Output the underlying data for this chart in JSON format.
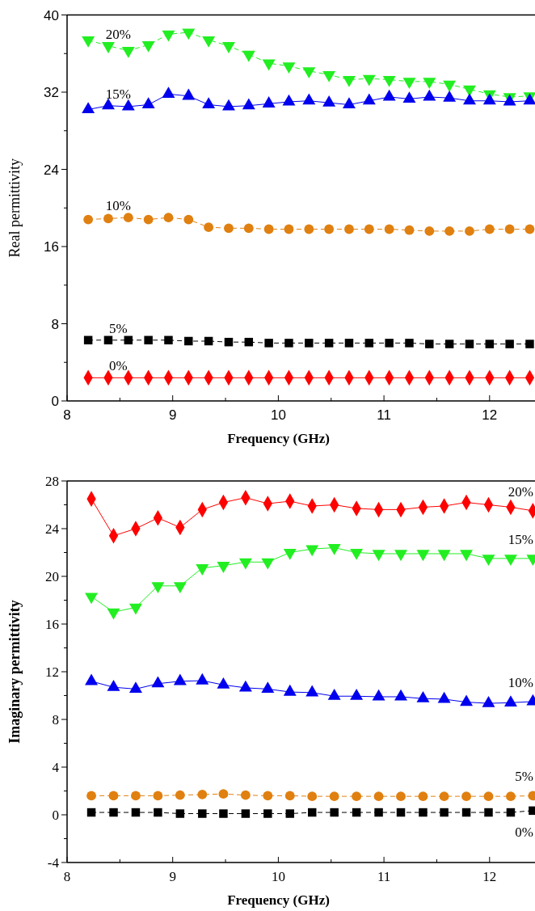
{
  "chart_data": [
    {
      "type": "line",
      "xlabel": "Frequency (GHz)",
      "ylabel": "Real permittivity",
      "x": [
        8.2,
        8.39,
        8.58,
        8.77,
        8.96,
        9.15,
        9.34,
        9.53,
        9.72,
        9.91,
        10.1,
        10.29,
        10.48,
        10.67,
        10.86,
        11.05,
        11.24,
        11.43,
        11.62,
        11.81,
        12.0,
        12.19,
        12.38
      ],
      "xlim": [
        8,
        12.43
      ],
      "xticks": [
        8,
        {
          "value": 8.5,
          "label": null
        },
        9,
        {
          "value": 9.5,
          "label": null
        },
        10,
        {
          "value": 10.5,
          "label": null
        },
        11,
        {
          "value": 11.5,
          "label": null
        },
        12
      ],
      "ylim": [
        0,
        40
      ],
      "yticks": [
        0,
        {
          "value": 4,
          "label": null
        },
        8,
        {
          "value": 12,
          "label": null
        },
        16,
        {
          "value": 20,
          "label": null
        },
        24,
        {
          "value": 28,
          "label": null
        },
        32,
        {
          "value": 36,
          "label": null
        },
        40
      ],
      "grid": false,
      "series": [
        {
          "name": "20%",
          "color": "#22ee22",
          "marker": "triangle-down",
          "line_style": "dashed",
          "values": [
            37.4,
            36.8,
            36.3,
            36.9,
            38.0,
            38.2,
            37.4,
            36.8,
            35.9,
            35.0,
            34.7,
            34.2,
            33.8,
            33.3,
            33.4,
            33.3,
            33.1,
            33.1,
            32.8,
            32.3,
            31.8,
            31.5,
            31.6
          ]
        },
        {
          "name": "15%",
          "color": "#0000ee",
          "marker": "triangle",
          "line_style": "solid",
          "values": [
            30.2,
            30.6,
            30.5,
            30.7,
            31.8,
            31.6,
            30.7,
            30.5,
            30.6,
            30.8,
            31.0,
            31.1,
            30.9,
            30.7,
            31.1,
            31.5,
            31.3,
            31.5,
            31.4,
            31.1,
            31.1,
            31.0,
            31.1
          ]
        },
        {
          "name": "10%",
          "color": "#e08010",
          "marker": "circle",
          "line_style": "dashed",
          "values": [
            18.8,
            18.9,
            19.0,
            18.8,
            19.0,
            18.8,
            18.0,
            17.9,
            17.9,
            17.8,
            17.8,
            17.8,
            17.8,
            17.8,
            17.8,
            17.8,
            17.7,
            17.6,
            17.6,
            17.6,
            17.8,
            17.8,
            17.8
          ]
        },
        {
          "name": "5%",
          "color": "#000000",
          "marker": "square",
          "line_style": "dashed",
          "values": [
            6.3,
            6.3,
            6.3,
            6.3,
            6.3,
            6.2,
            6.2,
            6.1,
            6.1,
            6.0,
            6.0,
            6.0,
            6.0,
            6.0,
            6.0,
            6.0,
            6.0,
            5.9,
            5.9,
            5.9,
            5.9,
            5.9,
            5.9
          ]
        },
        {
          "name": "0%",
          "color": "#ff0000",
          "marker": "diamond",
          "line_style": "solid",
          "values": [
            2.4,
            2.4,
            2.4,
            2.4,
            2.4,
            2.4,
            2.4,
            2.4,
            2.4,
            2.4,
            2.4,
            2.4,
            2.4,
            2.4,
            2.4,
            2.4,
            2.4,
            2.4,
            2.4,
            2.4,
            2.4,
            2.4,
            2.4
          ]
        }
      ]
    },
    {
      "type": "line",
      "xlabel": "Frequency (GHz)",
      "ylabel": "Imaginary permittivity",
      "x": [
        8.23,
        8.44,
        8.65,
        8.86,
        9.07,
        9.28,
        9.48,
        9.69,
        9.9,
        10.11,
        10.32,
        10.53,
        10.74,
        10.95,
        11.16,
        11.37,
        11.57,
        11.78,
        11.99,
        12.2,
        12.41
      ],
      "xlim": [
        8,
        12.43
      ],
      "xticks": [
        8,
        {
          "value": 8.5,
          "label": null
        },
        9,
        {
          "value": 9.5,
          "label": null
        },
        10,
        {
          "value": 10.5,
          "label": null
        },
        11,
        {
          "value": 11.5,
          "label": null
        },
        12
      ],
      "ylim": [
        -4,
        28
      ],
      "yticks": [
        -4,
        {
          "value": -2,
          "label": null
        },
        0,
        {
          "value": 2,
          "label": null
        },
        4,
        {
          "value": 6,
          "label": null
        },
        8,
        {
          "value": 10,
          "label": null
        },
        12,
        {
          "value": 14,
          "label": null
        },
        16,
        {
          "value": 18,
          "label": null
        },
        20,
        {
          "value": 22,
          "label": null
        },
        24,
        {
          "value": 26,
          "label": null
        },
        28
      ],
      "grid": false,
      "series": [
        {
          "name": "20%",
          "color": "#ff0000",
          "marker": "diamond",
          "line_style": "solid",
          "values": [
            26.5,
            23.4,
            24.0,
            24.9,
            24.1,
            25.6,
            26.2,
            26.6,
            26.1,
            26.3,
            25.9,
            26.0,
            25.7,
            25.6,
            25.6,
            25.8,
            25.9,
            26.2,
            26.0,
            25.8,
            25.5
          ]
        },
        {
          "name": "15%",
          "color": "#22ee22",
          "marker": "triangle-down",
          "line_style": "solid",
          "values": [
            18.3,
            17.0,
            17.4,
            19.2,
            19.2,
            20.7,
            20.9,
            21.2,
            21.2,
            22.0,
            22.3,
            22.4,
            22.0,
            21.9,
            21.9,
            21.9,
            21.9,
            21.9,
            21.5,
            21.5,
            21.5
          ]
        },
        {
          "name": "10%",
          "color": "#0000ee",
          "marker": "triangle",
          "line_style": "solid",
          "values": [
            11.2,
            10.7,
            10.55,
            11.0,
            11.2,
            11.25,
            10.9,
            10.65,
            10.55,
            10.3,
            10.25,
            9.95,
            9.95,
            9.9,
            9.9,
            9.75,
            9.7,
            9.45,
            9.35,
            9.4,
            9.5
          ]
        },
        {
          "name": "5%",
          "color": "#e08010",
          "marker": "circle",
          "line_style": "dashed",
          "values": [
            1.6,
            1.6,
            1.6,
            1.6,
            1.65,
            1.7,
            1.75,
            1.65,
            1.6,
            1.6,
            1.55,
            1.55,
            1.55,
            1.55,
            1.55,
            1.55,
            1.55,
            1.55,
            1.55,
            1.55,
            1.6
          ]
        },
        {
          "name": "0%",
          "color": "#000000",
          "marker": "square",
          "line_style": "dashed",
          "values": [
            0.2,
            0.2,
            0.2,
            0.2,
            0.1,
            0.1,
            0.1,
            0.1,
            0.1,
            0.1,
            0.2,
            0.2,
            0.2,
            0.2,
            0.2,
            0.2,
            0.2,
            0.2,
            0.2,
            0.2,
            0.35
          ]
        }
      ]
    }
  ]
}
